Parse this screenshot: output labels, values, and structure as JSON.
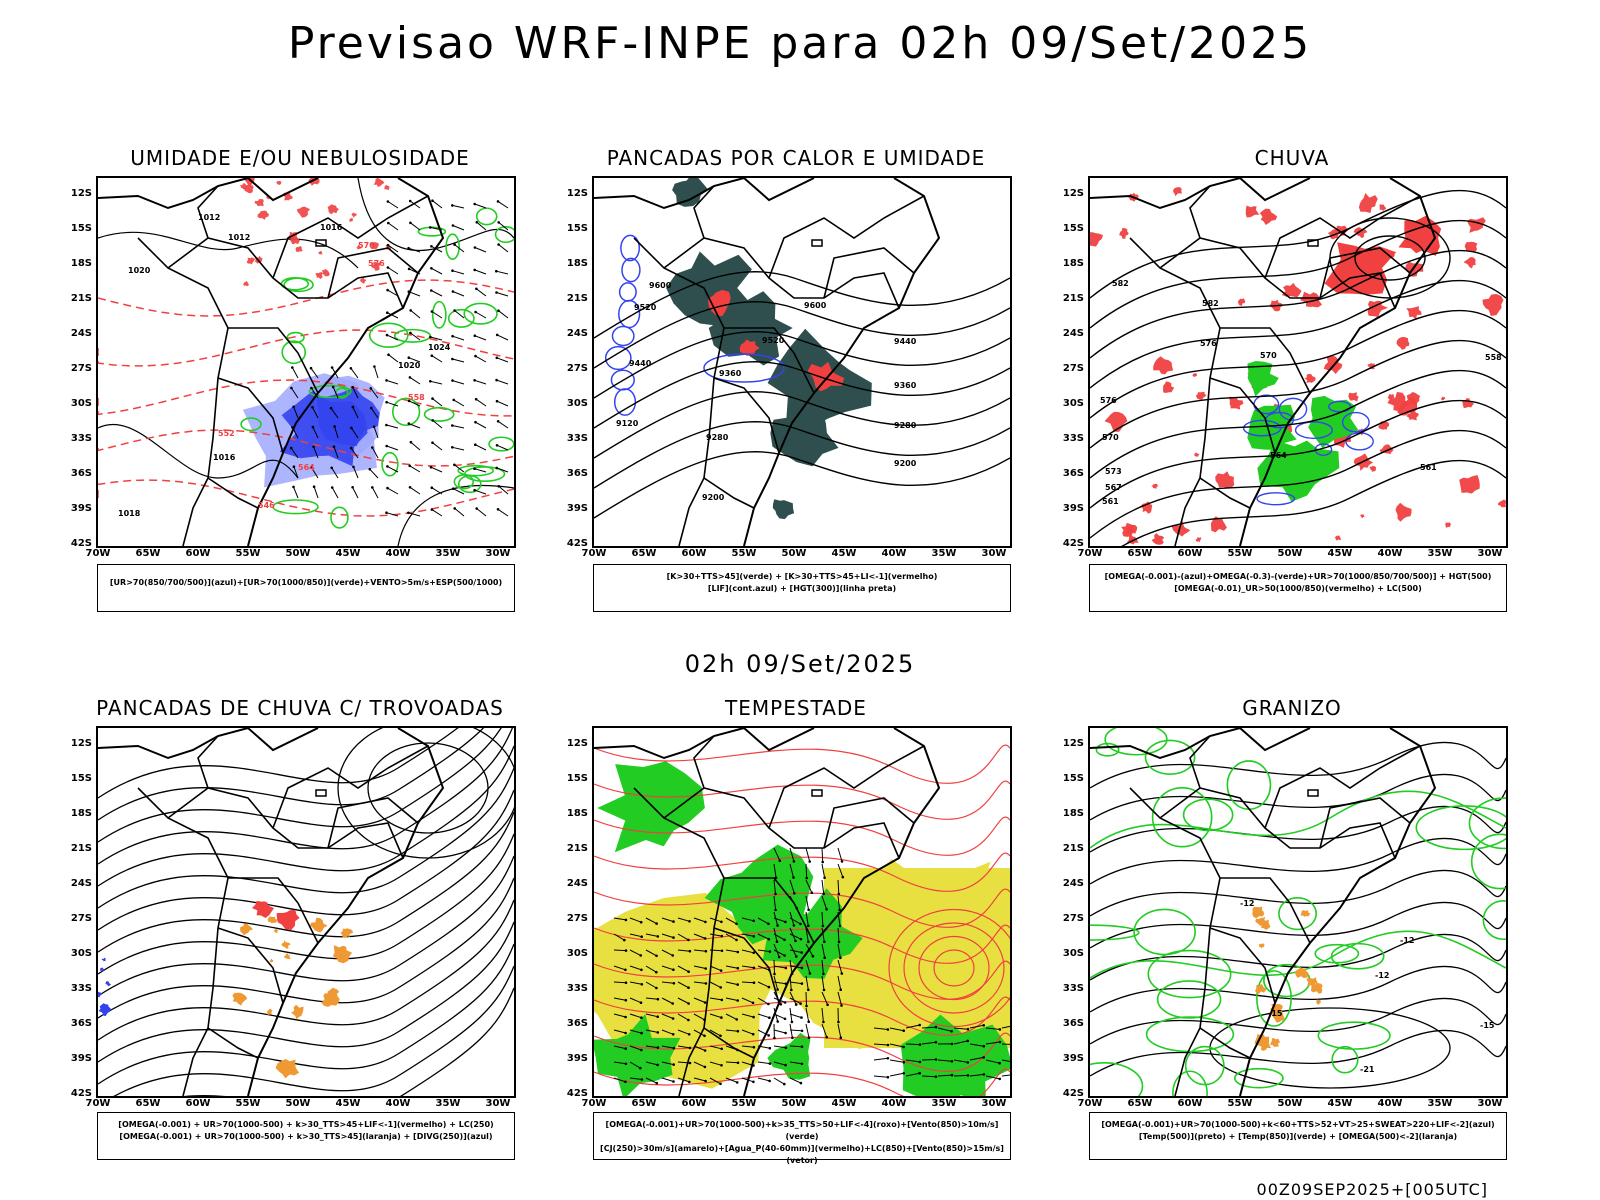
{
  "main_title": "Previsao WRF-INPE  para 02h 09/Set/2025",
  "sub_title": "02h 09/Set/2025",
  "footer": "00Z09SEP2025+[005UTC]",
  "latitude_labels": [
    "12S",
    "15S",
    "18S",
    "21S",
    "24S",
    "27S",
    "30S",
    "33S",
    "36S",
    "39S",
    "42S"
  ],
  "longitude_labels": [
    "70W",
    "65W",
    "60W",
    "55W",
    "50W",
    "45W",
    "40W",
    "35W",
    "30W"
  ],
  "colors": {
    "green": "#22cc22",
    "blue": "#3344ee",
    "lightblue": "#a0a8ff",
    "red": "#f04040",
    "orange": "#ee9933",
    "yellow": "#e8e040",
    "darkteal": "#2f4f4f"
  },
  "panels": [
    {
      "title": "UMIDADE E/OU NEBULOSIDADE",
      "legend": [
        "[UR>70(850/700/500)](azul)+[UR>70(1000/850)](verde)+VENTO>5m/s+ESP(500/1000)"
      ],
      "contour_labels": [
        "1012",
        "1012",
        "1016",
        "1020",
        "1020",
        "1024",
        "1016",
        "1018",
        "564",
        "552",
        "546",
        "558",
        "570",
        "576"
      ]
    },
    {
      "title": "PANCADAS POR CALOR E UMIDADE",
      "legend": [
        "[K>30+TTS>45](verde) + [K>30+TTS>45+LI<-1](vermelho)",
        "[LIF](cont.azul) + [HGT(300)](linha preta)"
      ],
      "contour_labels": [
        "9600",
        "9520",
        "9440",
        "9360",
        "9280",
        "9200",
        "9120",
        "9600",
        "9520",
        "9440",
        "9360",
        "9280",
        "9200"
      ]
    },
    {
      "title": "CHUVA",
      "legend": [
        "[OMEGA(-0.001)-(azul)+OMEGA(-0.3)-(verde)+UR>70(1000/850/700/500)] + HGT(500)",
        "[OMEGA(-0.01)_UR>50(1000/850)(vermelho) + LC(500)"
      ],
      "contour_labels": [
        "582",
        "576",
        "570",
        "573",
        "567",
        "561",
        "582",
        "576",
        "570",
        "564",
        "561",
        "558"
      ]
    },
    {
      "title": "PANCADAS DE CHUVA C/ TROVOADAS",
      "legend": [
        "[OMEGA(-0.001) + UR>70(1000-500) + k>30_TTS>45+LIF<-1](vermelho) + LC(250)",
        "[OMEGA(-0.001) + UR>70(1000-500) + k>30_TTS>45](laranja) + [DIVG(250)](azul)"
      ],
      "contour_labels": []
    },
    {
      "title": "TEMPESTADE",
      "legend": [
        "[OMEGA(-0.001)+UR>70(1000-500)+k>35_TTS>50+LIF<-4](roxo)+[Vento(850)>10m/s](verde)",
        "[CJ(250)>30m/s](amarelo)+[Agua_P(40-60mm)](vermelho)+LC(850)+[Vento(850)>15m/s](vetor)"
      ],
      "contour_labels": []
    },
    {
      "title": "GRANIZO",
      "legend": [
        "[OMEGA(-0.001)+UR>70(1000-500)+k<60+TTS>52+VT>25+SWEAT>220+LIF<-2](azul)",
        "[Temp(500)](preto) + [Temp(850)](verde) + [OMEGA(500)<-2](laranja)"
      ],
      "contour_labels": [
        "-12",
        "-12",
        "-15",
        "-21",
        "-15",
        "-12"
      ]
    }
  ]
}
